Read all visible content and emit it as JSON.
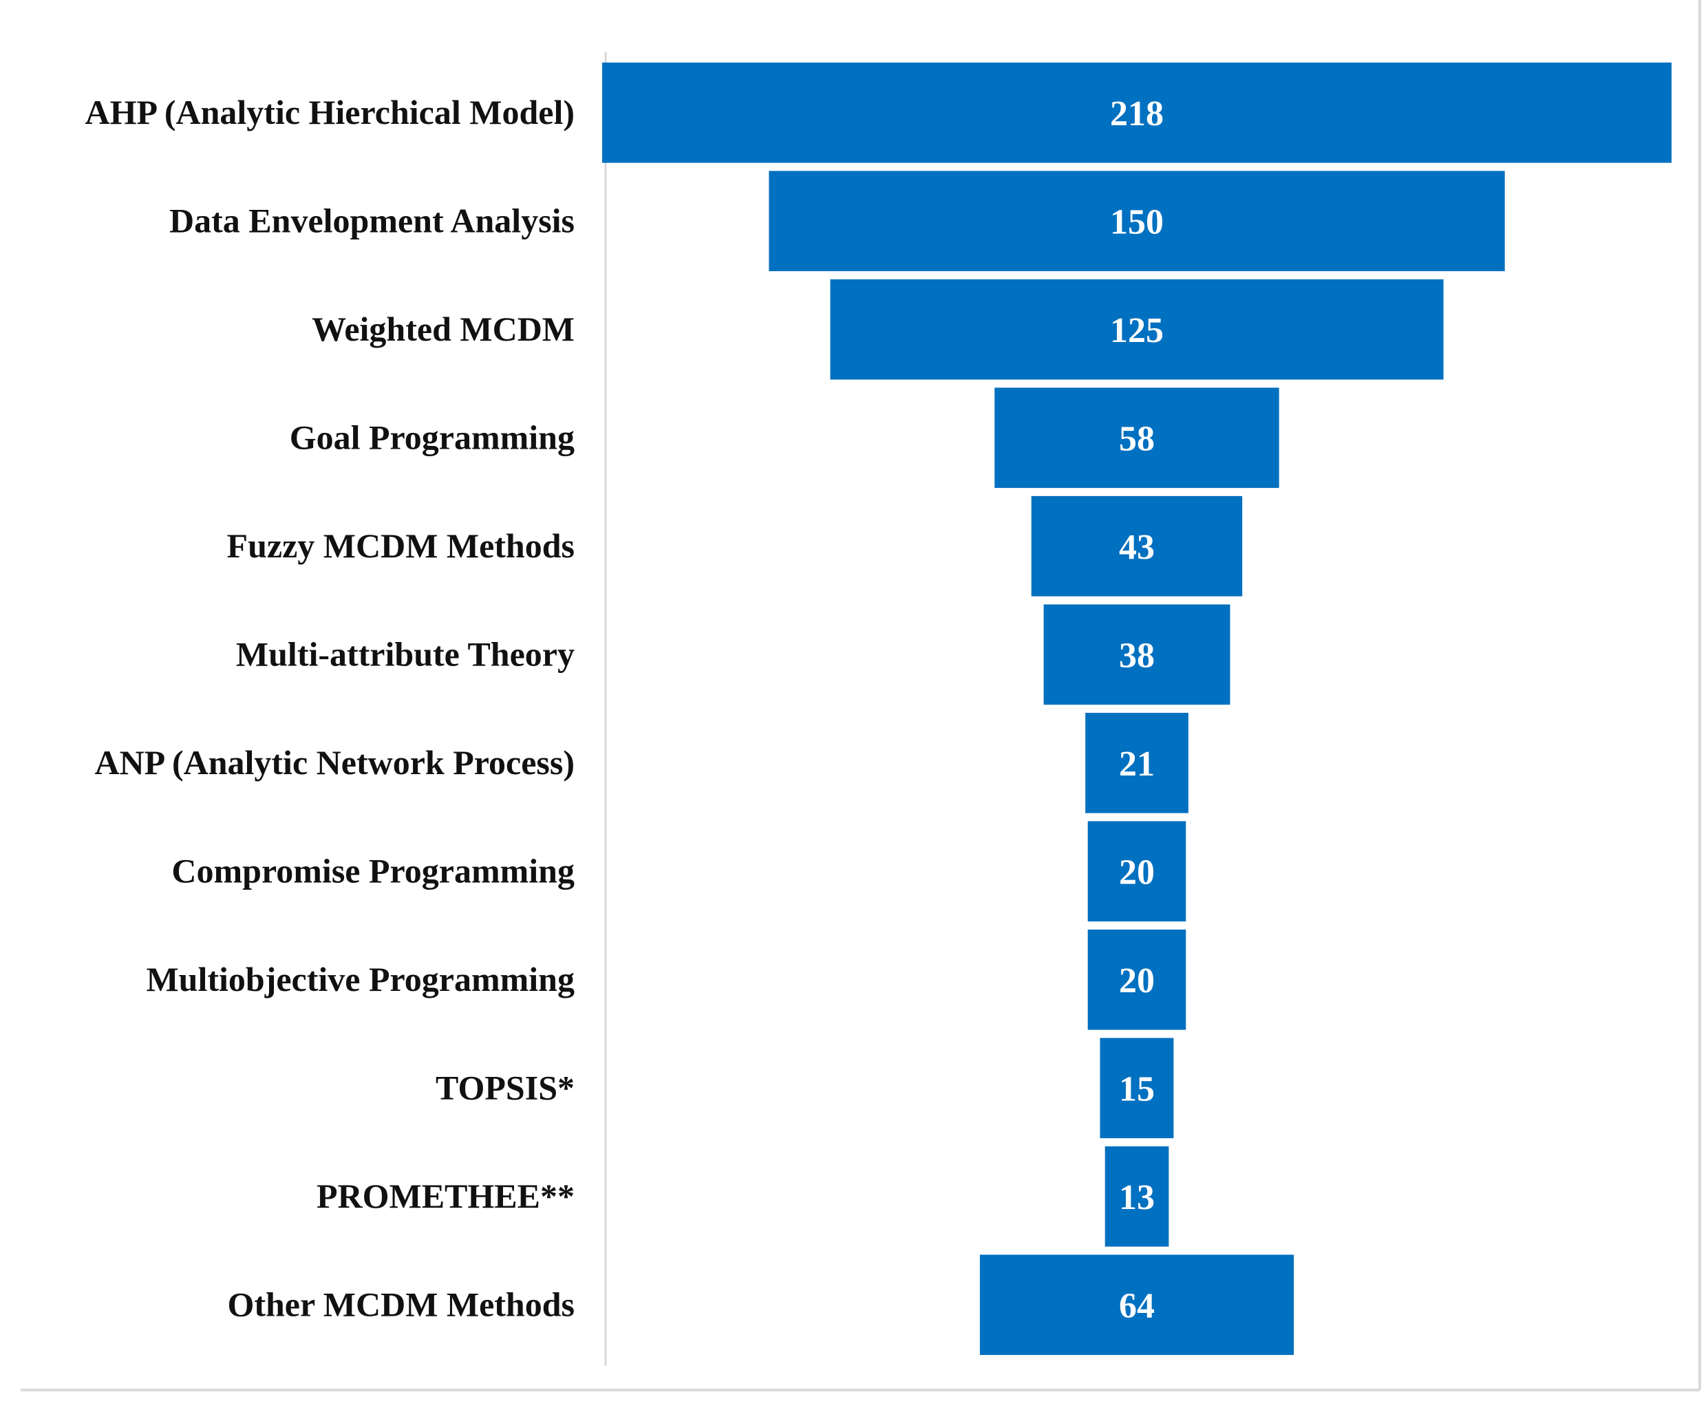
{
  "chart_data": {
    "type": "bar",
    "orientation": "horizontal",
    "layout": "funnel-centered",
    "categories": [
      "AHP (Analytic Hierchical Model)",
      "Data Envelopment Analysis",
      "Weighted MCDM",
      "Goal Programming",
      "Fuzzy MCDM Methods",
      "Multi-attribute Theory",
      "ANP (Analytic Network Process)",
      "Compromise Programming",
      "Multiobjective Programming",
      "TOPSIS*",
      "PROMETHEE**",
      "Other MCDM Methods"
    ],
    "values": [
      218,
      150,
      125,
      58,
      43,
      38,
      21,
      20,
      20,
      15,
      13,
      64
    ],
    "bar_color": "#0070C0",
    "value_label_color": "#ffffff",
    "grid": false,
    "legend": "none"
  }
}
